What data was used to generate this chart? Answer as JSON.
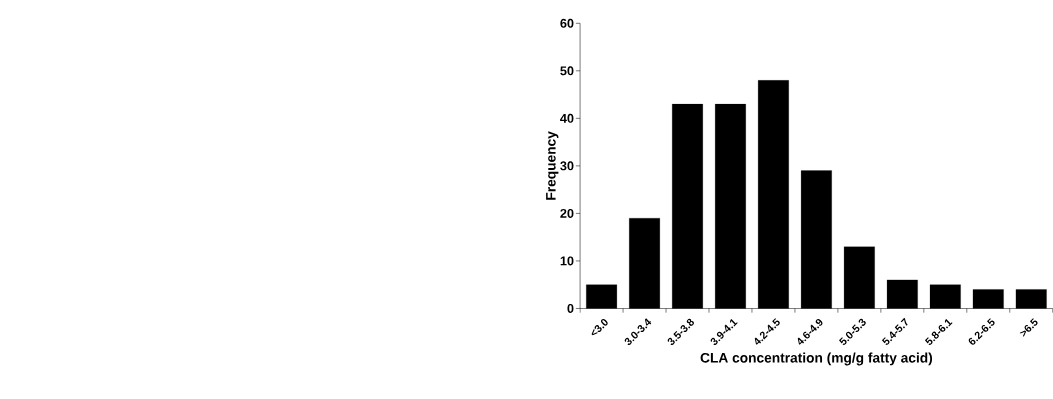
{
  "chart_data": {
    "type": "bar",
    "xlabel": "CLA concentration (mg/g fatty acid)",
    "ylabel": "Frequency",
    "categories": [
      "<3.0",
      "3.0-3.4",
      "3.5-3.8",
      "3.9-4.1",
      "4.2-4.5",
      "4.6-4.9",
      "5.0-5.3",
      "5.4-5.7",
      "5.8-6.1",
      "6.2-6.5",
      ">6.5"
    ],
    "values": [
      5,
      19,
      43,
      43,
      48,
      29,
      13,
      6,
      5,
      4,
      4
    ],
    "color": "#000000",
    "ylim": [
      0,
      60
    ],
    "yticks": [
      0,
      10,
      20,
      30,
      40,
      50,
      60
    ],
    "grid": false
  }
}
